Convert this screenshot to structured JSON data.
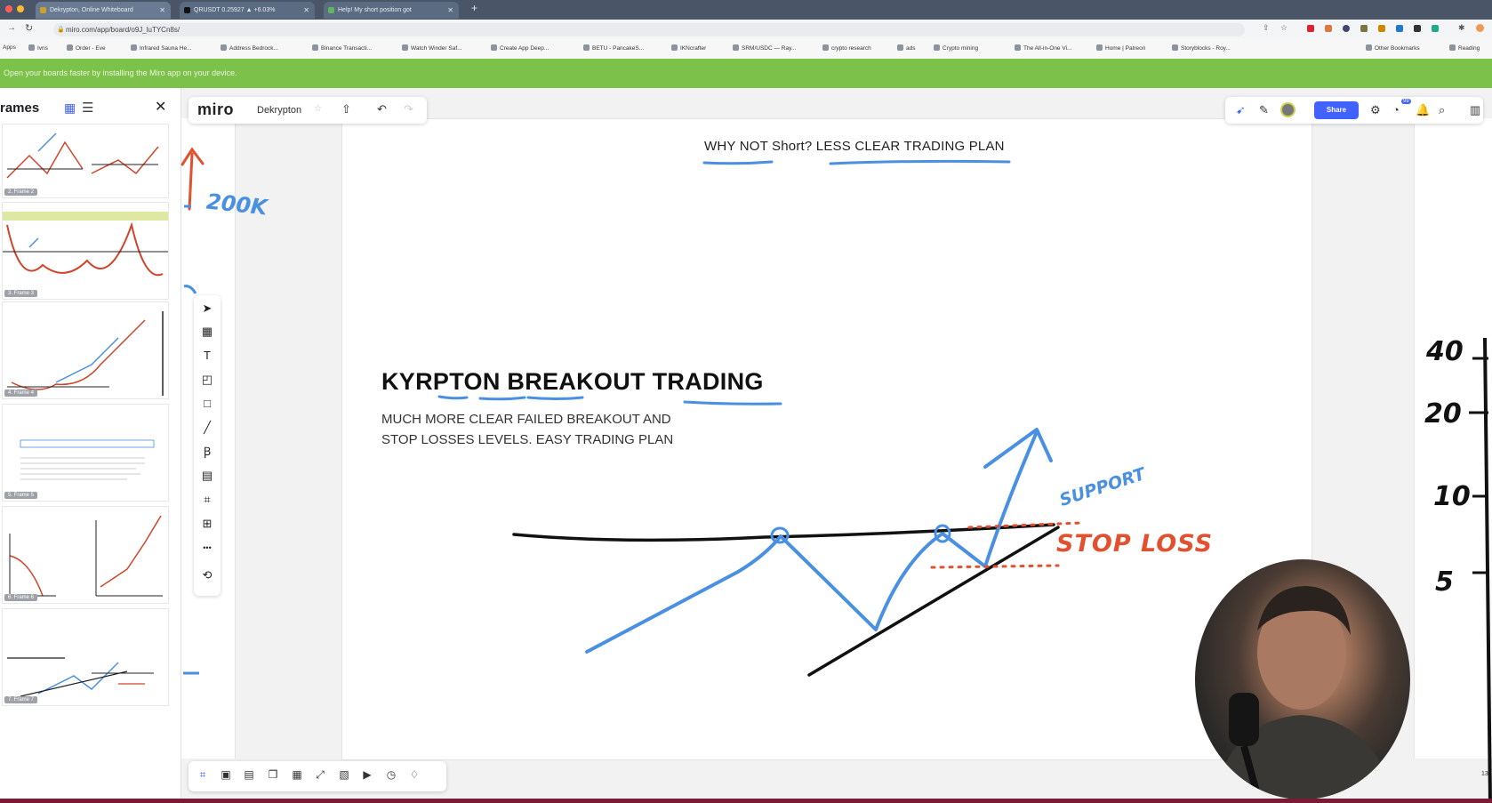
{
  "browser": {
    "tabs": [
      {
        "label": "Dekrypton, Online Whiteboard",
        "active": true
      },
      {
        "label": "QRUSDT 0.25927 ▲ +6.03% ",
        "active": false
      },
      {
        "label": "Help! My short position got ",
        "active": false
      }
    ],
    "new_tab": "+",
    "url": "miro.com/app/board/o9J_luTYCn8s/",
    "bookmarks": [
      "Apps",
      "Ivns",
      "Order - Eve",
      "Infrared Sauna He...",
      "Address Bedrock...",
      "Binance Transacti...",
      "Watch Winder Saf...",
      "Create App Deep...",
      "BETU - PancakeS...",
      "IKNcrafter",
      "SRM/USDC — Ray...",
      "crypto research",
      "ads",
      "Crypto mining",
      "The All-in-One Vi...",
      "Home | Patreon",
      "Storyblocks - Roy...",
      "Other Bookmarks",
      "Reading"
    ],
    "banner": "Open your boards faster by installing the Miro app on your device."
  },
  "frames_panel": {
    "title": "rames",
    "frames": [
      "2. Frame 2",
      "3. Frame 3",
      "4. Frame 4",
      "5. Frame 5",
      "6. Frame 6",
      "7. Frame 7"
    ]
  },
  "board_bar": {
    "logo": "miro",
    "board_name": "Dekrypton",
    "star": "☆",
    "export_icon": "⇧",
    "undo_icon": "↶",
    "redo_icon": "↷"
  },
  "top_right": {
    "share_label": "Share",
    "notification_count": "99"
  },
  "toolbar": {
    "tools": [
      "➤",
      "▦",
      "T",
      "◰",
      "□",
      "╱",
      "Ꞵ",
      "▤",
      "⌗",
      "⊞",
      "•••",
      "⟲"
    ]
  },
  "bottom_bar": {
    "tools": [
      "⌗",
      "▣",
      "▤",
      "❐",
      "▦",
      "⤢",
      "▧",
      "▶",
      "◷",
      "♢"
    ]
  },
  "board": {
    "heading": "WHY NOT Short? LESS CLEAR TRADING PLAN",
    "title": "KYRPTON BREAKOUT TRADING",
    "body_line1": "MUCH MORE CLEAR FAILED BREAKOUT AND",
    "body_line2": "STOP LOSSES LEVELS. EASY TRADING PLAN",
    "support_label": "SUPPORT",
    "stop_loss_label": "STOP LOSS",
    "left_note": "200K",
    "scale_labels": [
      "40",
      "20",
      "10",
      "5"
    ],
    "right_edge_number": "13"
  },
  "colors": {
    "accent_blue": "#4a90e2",
    "stop_red": "#e2512f",
    "share_blue": "#4262ff",
    "banner_green": "#7cc24a"
  }
}
